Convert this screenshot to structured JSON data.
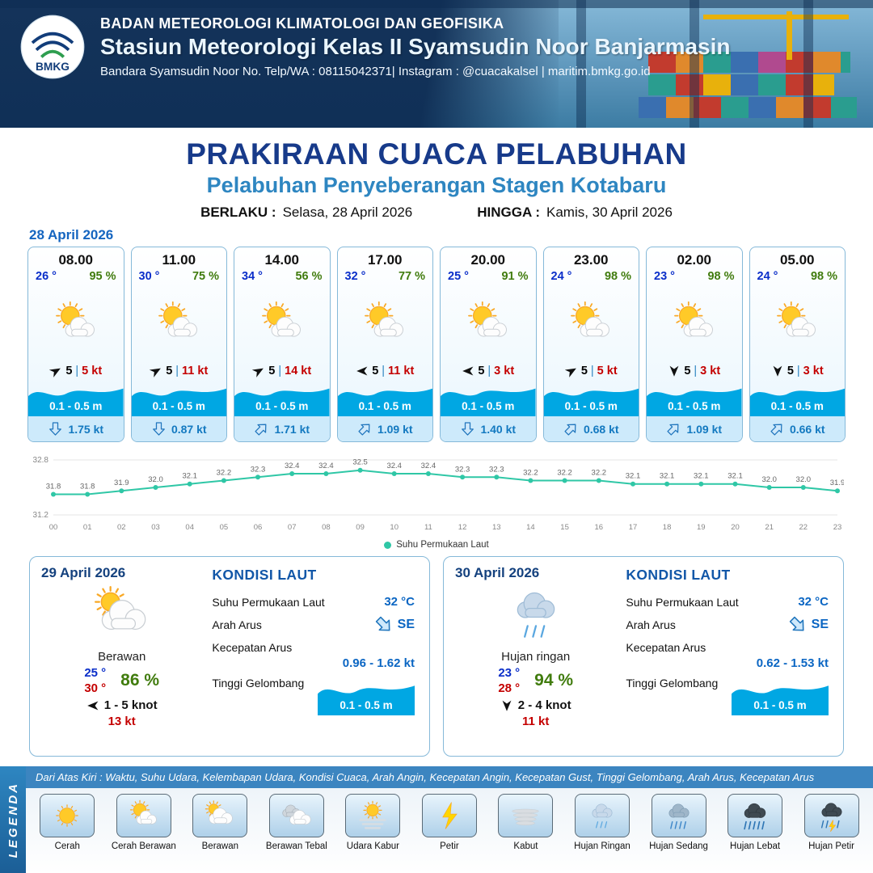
{
  "header": {
    "logo_label": "BMKG",
    "agency": "BADAN METEOROLOGI KLIMATOLOGI DAN GEOFISIKA",
    "station": "Stasiun Meteorologi Kelas II Syamsudin Noor Banjarmasin",
    "contact": "Bandara Syamsudin Noor No. Telp/WA : 08115042371| Instagram : @cuacakalsel | maritim.bmkg.go.id"
  },
  "title": {
    "main": "PRAKIRAAN CUACA PELABUHAN",
    "sub": "Pelabuhan Penyeberangan Stagen Kotabaru",
    "valid_from_label": "BERLAKU :",
    "valid_from": "Selasa, 28 April 2026",
    "valid_to_label": "HINGGA :",
    "valid_to": "Kamis, 30 April 2026"
  },
  "hourly": {
    "date": "28 April 2026",
    "cards": [
      {
        "time": "08.00",
        "temp": "26 °",
        "humidity": "95 %",
        "weather": "cerah-berawan",
        "wind_deg": 60,
        "wind_speed": "5",
        "gust": "5 kt",
        "wave": "0.1 - 0.5 m",
        "current_deg": 180,
        "current": "1.75 kt"
      },
      {
        "time": "11.00",
        "temp": "30 °",
        "humidity": "75 %",
        "weather": "cerah-berawan",
        "wind_deg": 60,
        "wind_speed": "5",
        "gust": "11 kt",
        "wave": "0.1 - 0.5 m",
        "current_deg": 180,
        "current": "0.87 kt"
      },
      {
        "time": "14.00",
        "temp": "34 °",
        "humidity": "56 %",
        "weather": "cerah-berawan",
        "wind_deg": 60,
        "wind_speed": "5",
        "gust": "14 kt",
        "wave": "0.1 - 0.5 m",
        "current_deg": 45,
        "current": "1.71 kt"
      },
      {
        "time": "17.00",
        "temp": "32 °",
        "humidity": "77 %",
        "weather": "cerah-berawan",
        "wind_deg": 270,
        "wind_speed": "5",
        "gust": "11 kt",
        "wave": "0.1 - 0.5 m",
        "current_deg": 45,
        "current": "1.09 kt"
      },
      {
        "time": "20.00",
        "temp": "25 °",
        "humidity": "91 %",
        "weather": "cerah-berawan",
        "wind_deg": 270,
        "wind_speed": "5",
        "gust": "3 kt",
        "wave": "0.1 - 0.5 m",
        "current_deg": 180,
        "current": "1.40 kt"
      },
      {
        "time": "23.00",
        "temp": "24 °",
        "humidity": "98 %",
        "weather": "cerah-berawan",
        "wind_deg": 60,
        "wind_speed": "5",
        "gust": "5 kt",
        "wave": "0.1 - 0.5 m",
        "current_deg": 45,
        "current": "0.68 kt"
      },
      {
        "time": "02.00",
        "temp": "23 °",
        "humidity": "98 %",
        "weather": "cerah-berawan",
        "wind_deg": 180,
        "wind_speed": "5",
        "gust": "3 kt",
        "wave": "0.1 - 0.5 m",
        "current_deg": 45,
        "current": "1.09 kt"
      },
      {
        "time": "05.00",
        "temp": "24 °",
        "humidity": "98 %",
        "weather": "cerah-berawan",
        "wind_deg": 180,
        "wind_speed": "5",
        "gust": "3 kt",
        "wave": "0.1 - 0.5 m",
        "current_deg": 45,
        "current": "0.66 kt"
      }
    ]
  },
  "chart_data": {
    "type": "line",
    "title": "",
    "x": [
      "00",
      "01",
      "02",
      "03",
      "04",
      "05",
      "06",
      "07",
      "08",
      "09",
      "10",
      "11",
      "12",
      "13",
      "14",
      "15",
      "16",
      "17",
      "18",
      "19",
      "20",
      "21",
      "22",
      "23"
    ],
    "values": [
      31.8,
      31.8,
      31.9,
      32.0,
      32.1,
      32.2,
      32.3,
      32.4,
      32.4,
      32.5,
      32.4,
      32.4,
      32.3,
      32.3,
      32.2,
      32.2,
      32.2,
      32.1,
      32.1,
      32.1,
      32.1,
      32.0,
      32.0,
      31.9
    ],
    "ylim": [
      31.2,
      32.8
    ],
    "series_name": "Suhu Permukaan Laut",
    "color": "#2fc7a6",
    "xlabel": "",
    "ylabel": "",
    "legend_position": "bottom",
    "grid": "horizontal-boundaries"
  },
  "sea_labels": {
    "heading": "KONDISI LAUT",
    "sst": "Suhu Permukaan Laut",
    "current_dir": "Arah Arus",
    "current_speed": "Kecepatan Arus",
    "wave_height": "Tinggi Gelombang"
  },
  "daily": [
    {
      "date": "29 April 2026",
      "weather": "berawan",
      "weather_label": "Berawan",
      "temp_min": "25 °",
      "temp_max": "30 °",
      "humidity": "86 %",
      "wind_deg": 270,
      "wind_range": "1 - 5 knot",
      "gust": "13 kt",
      "sst": "32 °C",
      "current_dir_deg": 135,
      "current_dir": "SE",
      "current_speed": "0.96 - 1.62 kt",
      "wave": "0.1 - 0.5 m"
    },
    {
      "date": "30 April 2026",
      "weather": "hujan-ringan",
      "weather_label": "Hujan ringan",
      "temp_min": "23 °",
      "temp_max": "28 °",
      "humidity": "94 %",
      "wind_deg": 180,
      "wind_range": "2  - 4 knot",
      "gust": "11 kt",
      "sst": "32 °C",
      "current_dir_deg": 135,
      "current_dir": "SE",
      "current_speed": "0.62 - 1.53 kt",
      "wave": "0.1 - 0.5 m"
    }
  ],
  "legend": {
    "title": "LEGENDA",
    "description": "Dari Atas Kiri : Waktu, Suhu Udara, Kelembapan Udara, Kondisi Cuaca, Arah Angin, Kecepatan Angin, Kecepatan Gust, Tinggi Gelombang, Arah Arus, Kecepatan Arus",
    "items": [
      {
        "label": "Cerah",
        "type": "cerah"
      },
      {
        "label": "Cerah Berawan",
        "type": "cerah-berawan"
      },
      {
        "label": "Berawan",
        "type": "berawan"
      },
      {
        "label": "Berawan Tebal",
        "type": "berawan-tebal"
      },
      {
        "label": "Udara Kabur",
        "type": "udara-kabur"
      },
      {
        "label": "Petir",
        "type": "petir"
      },
      {
        "label": "Kabut",
        "type": "kabut"
      },
      {
        "label": "Hujan Ringan",
        "type": "hujan-ringan"
      },
      {
        "label": "Hujan Sedang",
        "type": "hujan-sedang"
      },
      {
        "label": "Hujan Lebat",
        "type": "hujan-lebat"
      },
      {
        "label": "Hujan Petir",
        "type": "hujan-petir"
      }
    ]
  },
  "colors": {
    "accent_blue": "#2e86c1",
    "title_navy": "#173a8a",
    "temp_blue": "#0a2ec9",
    "humidity_green": "#417c0e",
    "gust_red": "#c40000",
    "wave_blue": "#00a7e3",
    "chart_teal": "#2fc7a6"
  }
}
